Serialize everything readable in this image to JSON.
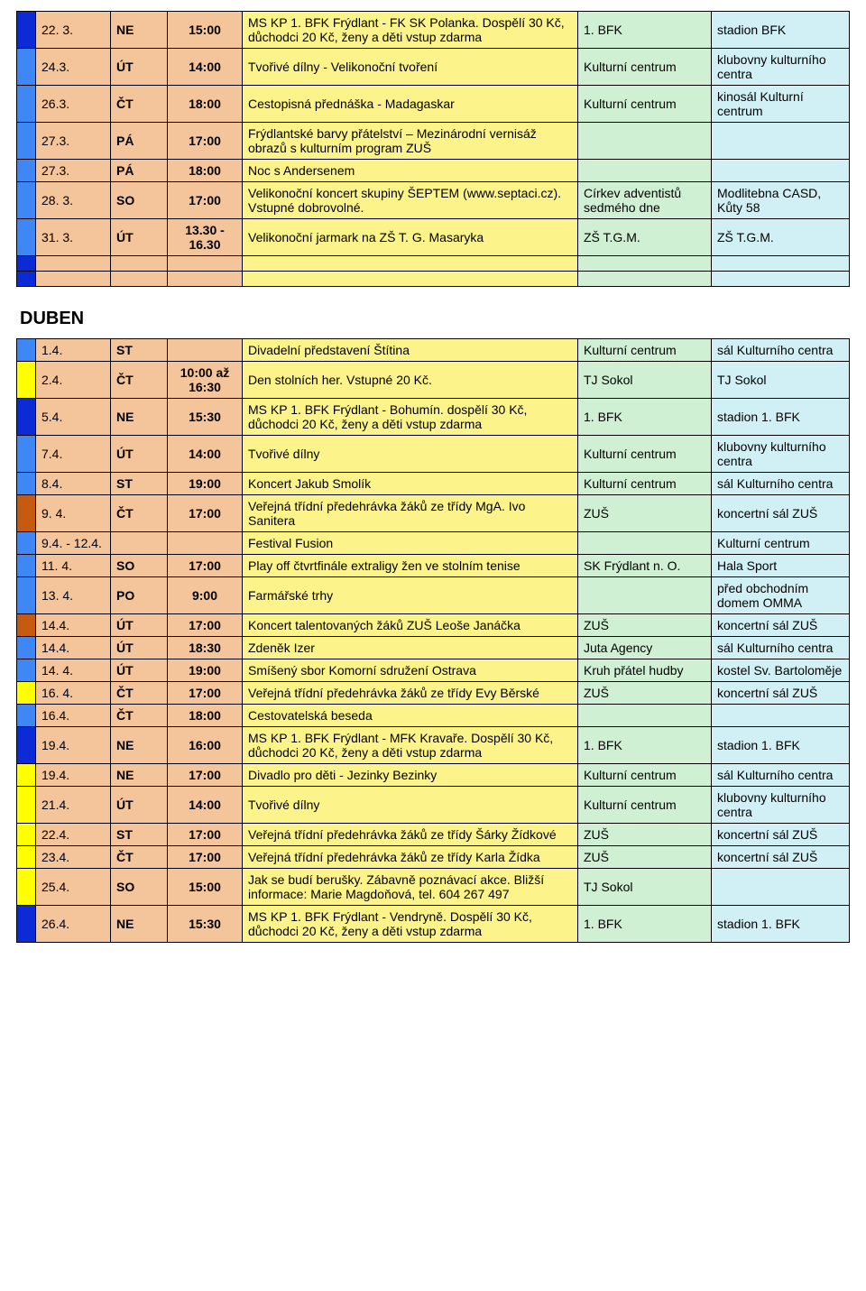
{
  "colors": {
    "date_bg": "#f4c49a",
    "day_bg": "#f4c49a",
    "time_bg": "#f4c49a",
    "desc_bg": "#fdf38b",
    "org_bg": "#d0f0d4",
    "loc_bg": "#d1f0f5",
    "mark_blue": "#0a2bd6",
    "mark_lightblue": "#3f87f5",
    "mark_yellow": "#ffff00",
    "mark_orange": "#c65a11"
  },
  "section2_title": "DUBEN",
  "rows1": [
    {
      "mark": "mark_blue",
      "date": "22. 3.",
      "day": "NE",
      "time": "15:00",
      "desc": "MS KP 1. BFK Frýdlant - FK SK Polanka. Dospělí 30 Kč, důchodci 20 Kč, ženy a děti vstup zdarma",
      "org": "1. BFK",
      "loc": "stadion BFK"
    },
    {
      "mark": "mark_lightblue",
      "date": "24.3.",
      "day": "ÚT",
      "time": "14:00",
      "desc": "Tvořivé dílny - Velikonoční tvoření",
      "org": "Kulturní centrum",
      "loc": "klubovny kulturního centra"
    },
    {
      "mark": "mark_lightblue",
      "date": "26.3.",
      "day": "ČT",
      "time": "18:00",
      "desc": "Cestopisná přednáška - Madagaskar",
      "org": "Kulturní centrum",
      "loc": "kinosál Kulturní centrum"
    },
    {
      "mark": "mark_lightblue",
      "date": "27.3.",
      "day": "PÁ",
      "time": "17:00",
      "desc": "Frýdlantské barvy přátelství – Mezinárodní vernisáž obrazů s kulturním program ZUŠ",
      "org": "",
      "loc": ""
    },
    {
      "mark": "mark_lightblue",
      "date": "27.3.",
      "day": "PÁ",
      "time": "18:00",
      "desc": "Noc s Andersenem",
      "org": "",
      "loc": ""
    },
    {
      "mark": "mark_lightblue",
      "date": "28. 3.",
      "day": "SO",
      "time": "17:00",
      "desc": "Velikonoční koncert skupiny ŠEPTEM (www.septaci.cz). Vstupné dobrovolné.",
      "org": "Církev adventistů sedmého dne",
      "loc": "Modlitebna CASD, Kůty 58"
    },
    {
      "mark": "mark_lightblue",
      "date": "31. 3.",
      "day": "ÚT",
      "time": "13.30 - 16.30",
      "desc": "Velikonoční jarmark na ZŠ T. G. Masaryka",
      "org": "ZŠ T.G.M.",
      "loc": "ZŠ T.G.M."
    },
    {
      "mark": "mark_blue",
      "date": "",
      "day": "",
      "time": "",
      "desc": "",
      "org": "",
      "loc": ""
    },
    {
      "mark": "mark_blue",
      "date": "",
      "day": "",
      "time": "",
      "desc": "",
      "org": "",
      "loc": ""
    }
  ],
  "rows2": [
    {
      "mark": "mark_lightblue",
      "date": "1.4.",
      "day": "ST",
      "time": "",
      "desc": "Divadelní představení Štítina",
      "org": "Kulturní centrum",
      "loc": "sál Kulturního centra"
    },
    {
      "mark": "mark_yellow",
      "date": "2.4.",
      "day": "ČT",
      "time": "10:00 až 16:30",
      "desc": "Den stolních her. Vstupné 20 Kč.",
      "org": "TJ Sokol",
      "loc": "TJ Sokol"
    },
    {
      "mark": "mark_blue",
      "date": "5.4.",
      "day": "NE",
      "time": "15:30",
      "desc": "MS KP 1. BFK Frýdlant - Bohumín. dospělí 30 Kč, důchodci 20 Kč, ženy a děti vstup zdarma",
      "org": "1. BFK",
      "loc": "stadion 1. BFK"
    },
    {
      "mark": "mark_lightblue",
      "date": "7.4.",
      "day": "ÚT",
      "time": "14:00",
      "desc": "Tvořivé dílny",
      "org": "Kulturní centrum",
      "loc": "klubovny kulturního centra"
    },
    {
      "mark": "mark_lightblue",
      "date": "8.4.",
      "day": "ST",
      "time": "19:00",
      "desc": "Koncert Jakub Smolík",
      "org": "Kulturní centrum",
      "loc": "sál Kulturního centra"
    },
    {
      "mark": "mark_orange",
      "date": "9. 4.",
      "day": "ČT",
      "time": "17:00",
      "desc": "Veřejná třídní předehrávka žáků ze třídy MgA. Ivo Sanitera",
      "org": "ZUŠ",
      "loc": "koncertní sál ZUŠ"
    },
    {
      "mark": "mark_lightblue",
      "date": "9.4. - 12.4.",
      "day": "",
      "time": "",
      "desc": "Festival Fusion",
      "org": "",
      "loc": "Kulturní centrum"
    },
    {
      "mark": "mark_lightblue",
      "date": "11. 4.",
      "day": "SO",
      "time": "17:00",
      "desc": "Play off  čtvrtfinále extraligy žen ve stolním tenise",
      "org": "SK Frýdlant n. O.",
      "loc": "Hala Sport"
    },
    {
      "mark": "mark_lightblue",
      "date": "13. 4.",
      "day": "PO",
      "time": "9:00",
      "desc": "Farmářské trhy",
      "org": "",
      "loc": "před obchodním domem OMMA"
    },
    {
      "mark": "mark_orange",
      "date": "14.4.",
      "day": "ÚT",
      "time": "17:00",
      "desc": "Koncert talentovaných žáků ZUŠ Leoše Janáčka",
      "org": "ZUŠ",
      "loc": "koncertní sál ZUŠ"
    },
    {
      "mark": "mark_lightblue",
      "date": "14.4.",
      "day": "ÚT",
      "time": "18:30",
      "desc": "Zdeněk Izer",
      "org": "Juta Agency",
      "loc": "sál Kulturního centra"
    },
    {
      "mark": "mark_lightblue",
      "date": "14. 4.",
      "day": "ÚT",
      "time": "19:00",
      "desc": "Smíšený sbor Komorní sdružení Ostrava",
      "org": "Kruh přátel hudby",
      "loc": "kostel Sv. Bartoloměje"
    },
    {
      "mark": "mark_yellow",
      "date": "16. 4.",
      "day": "ČT",
      "time": "17:00",
      "desc": "Veřejná třídní předehrávka žáků ze třídy Evy Běrské",
      "org": "ZUŠ",
      "loc": "koncertní sál ZUŠ"
    },
    {
      "mark": "mark_lightblue",
      "date": "16.4.",
      "day": "ČT",
      "time": "18:00",
      "desc": "Cestovatelská beseda",
      "org": "",
      "loc": ""
    },
    {
      "mark": "mark_blue",
      "date": "19.4.",
      "day": "NE",
      "time": "16:00",
      "desc": "MS KP 1. BFK Frýdlant - MFK Kravaře. Dospělí 30 Kč, důchodci 20 Kč, ženy a děti vstup zdarma",
      "org": "1. BFK",
      "loc": "stadion 1. BFK"
    },
    {
      "mark": "mark_yellow",
      "date": "19.4.",
      "day": "NE",
      "time": "17:00",
      "desc": "Divadlo pro děti - Jezinky Bezinky",
      "org": "Kulturní centrum",
      "loc": "sál Kulturního centra"
    },
    {
      "mark": "mark_yellow",
      "date": "21.4.",
      "day": "ÚT",
      "time": "14:00",
      "desc": "Tvořivé dílny",
      "org": "Kulturní centrum",
      "loc": "klubovny kulturního centra"
    },
    {
      "mark": "mark_yellow",
      "date": "22.4.",
      "day": "ST",
      "time": "17:00",
      "desc": "Veřejná třídní předehrávka žáků ze třídy Šárky Žídkové",
      "org": "ZUŠ",
      "loc": "koncertní sál ZUŠ"
    },
    {
      "mark": "mark_yellow",
      "date": "23.4.",
      "day": "ČT",
      "time": "17:00",
      "desc": "Veřejná třídní předehrávka žáků ze třídy Karla Žídka",
      "org": "ZUŠ",
      "loc": "koncertní sál ZUŠ"
    },
    {
      "mark": "mark_yellow",
      "date": "25.4.",
      "day": "SO",
      "time": "15:00",
      "desc": "Jak se budí berušky. Zábavně poznávací akce. Bližší informace: Marie Magdoňová, tel. 604 267 497",
      "org": "TJ Sokol",
      "loc": ""
    },
    {
      "mark": "mark_blue",
      "date": "26.4.",
      "day": "NE",
      "time": "15:30",
      "desc": "MS KP 1. BFK Frýdlant - Vendryně. Dospělí 30 Kč, důchodci 20 Kč, ženy a děti vstup zdarma",
      "org": "1. BFK",
      "loc": "stadion 1. BFK"
    }
  ]
}
